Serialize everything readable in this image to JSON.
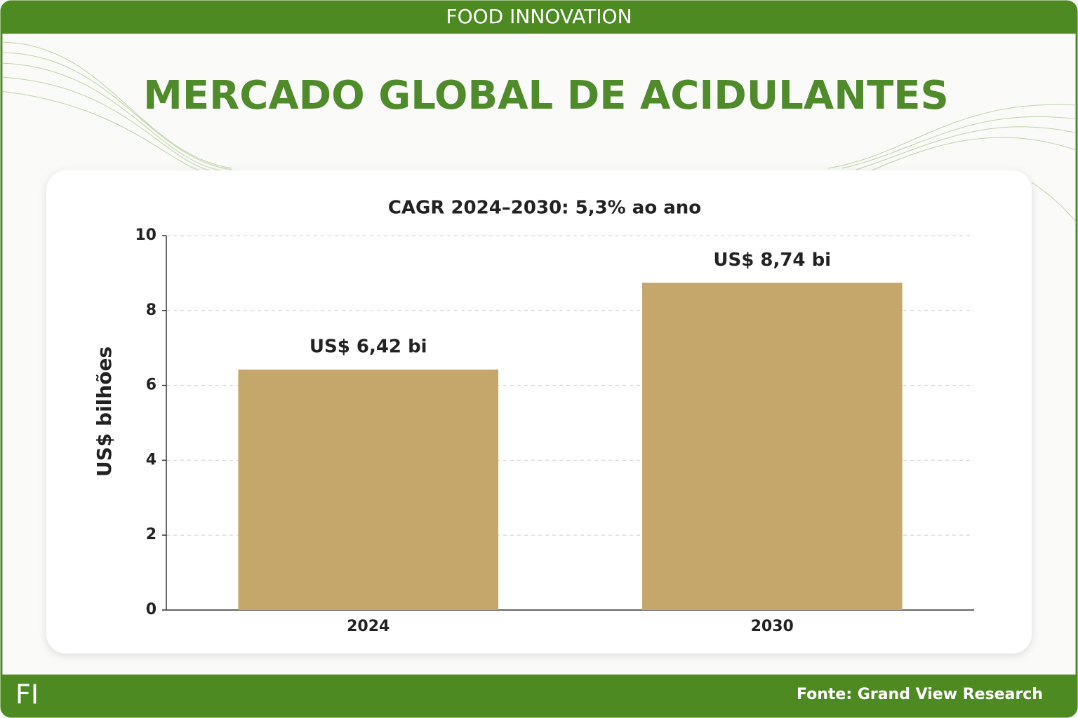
{
  "header": {
    "title": "FOOD INNOVATION"
  },
  "chart_data": {
    "type": "bar",
    "title": "MERCADO GLOBAL DE ACIDULANTES",
    "subtitle": "CAGR 2024–2030: 5,3% ao ano",
    "y_label": "US$ bilhões",
    "categories": [
      "2024",
      "2030"
    ],
    "values": [
      6.42,
      8.74
    ],
    "value_labels": [
      "US$ 6,42 bi",
      "US$ 8,74 bi"
    ],
    "color": "#c5a66b",
    "ylim": [
      0,
      10
    ],
    "yticks": [
      0,
      2,
      4,
      6,
      8,
      10
    ],
    "grid": true
  },
  "footer": {
    "logo": "FI",
    "source": "Fonte: Grand View Research"
  }
}
